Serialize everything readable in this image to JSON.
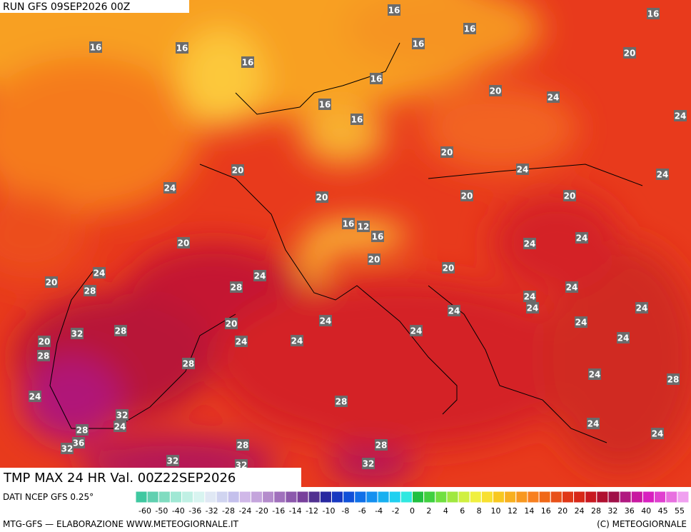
{
  "header": {
    "run": "RUN GFS 09SEP2026 00Z",
    "product": "TMP MAX 24 HR Val. 00Z22SEP2026"
  },
  "map": {
    "labels": [
      16,
      16,
      16,
      16,
      16,
      16,
      20,
      16,
      16,
      20,
      24,
      16,
      16,
      24,
      20,
      24,
      20,
      24,
      24,
      20,
      20,
      20,
      16,
      12,
      16,
      24,
      20,
      24,
      20,
      20,
      24,
      24,
      20,
      28,
      28,
      24,
      24,
      24,
      24,
      24,
      24,
      20,
      24,
      32,
      28,
      24,
      24,
      24,
      24,
      20,
      28,
      28,
      24,
      28,
      24,
      28,
      32,
      24,
      24,
      28,
      24,
      36,
      32,
      28,
      28,
      32,
      32,
      32
    ]
  },
  "legend": {
    "source": "DATI NCEP GFS 0.25°",
    "colors": [
      "#3fc8a0",
      "#60d0b0",
      "#80dcc0",
      "#a0e8d4",
      "#c0f0e4",
      "#d8f4f0",
      "#e0e8f4",
      "#d0d4f0",
      "#c4c0ec",
      "#d0b8e8",
      "#c4a4dc",
      "#b48ccc",
      "#a070bc",
      "#8c58ac",
      "#78409c",
      "#503090",
      "#2828a0",
      "#1838c0",
      "#1050d8",
      "#1070e8",
      "#1490f0",
      "#18b0f0",
      "#20d0f0",
      "#30e8e0",
      "#20c040",
      "#40d040",
      "#70e040",
      "#a0e840",
      "#d0f040",
      "#f0f040",
      "#f8e030",
      "#f8c820",
      "#f8b020",
      "#f89820",
      "#f88020",
      "#f06818",
      "#e85018",
      "#e03818",
      "#d82818",
      "#c81820",
      "#b01030",
      "#a01048",
      "#b01880",
      "#c818a0",
      "#d820c0",
      "#e040d0",
      "#e870e0",
      "#f0a0f0"
    ],
    "ticks": [
      -60,
      -50,
      -40,
      -36,
      -32,
      -28,
      -24,
      -20,
      -16,
      -14,
      -12,
      -10,
      -8,
      -6,
      -4,
      -2,
      0,
      2,
      4,
      6,
      8,
      10,
      12,
      14,
      16,
      20,
      24,
      28,
      32,
      36,
      40,
      45,
      55
    ]
  },
  "footer": {
    "credit": "MTG-GFS — ELABORAZIONE WWW.METEOGIORNALE.IT",
    "copyright": "(C) METEOGIORNALE"
  }
}
